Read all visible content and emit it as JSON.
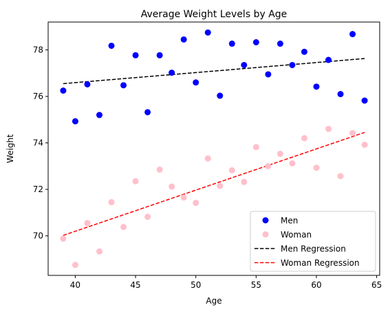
{
  "chart_data": {
    "type": "scatter",
    "title": "Average Weight Levels by Age",
    "xlabel": "Age",
    "ylabel": "Weight",
    "xlim": [
      37.75,
      65.25
    ],
    "ylim": [
      68.3,
      79.2
    ],
    "xticks": [
      40,
      45,
      50,
      55,
      60,
      65
    ],
    "yticks": [
      70,
      72,
      74,
      76,
      78
    ],
    "grid": false,
    "legend_position": "lower right",
    "series": [
      {
        "name": "Men",
        "kind": "scatter",
        "color": "#0000ff",
        "x": [
          39,
          40,
          41,
          42,
          43,
          44,
          45,
          46,
          47,
          48,
          49,
          50,
          51,
          52,
          53,
          54,
          55,
          56,
          57,
          58,
          59,
          60,
          61,
          62,
          63,
          64
        ],
        "y": [
          76.25,
          74.93,
          76.52,
          75.2,
          78.18,
          76.48,
          77.77,
          75.32,
          77.77,
          77.02,
          78.45,
          76.6,
          78.75,
          76.03,
          78.27,
          77.35,
          78.33,
          76.95,
          78.27,
          77.35,
          77.92,
          76.42,
          77.57,
          76.1,
          78.68,
          75.82
        ]
      },
      {
        "name": "Woman",
        "kind": "scatter",
        "color": "#ffc0cb",
        "x": [
          39,
          40,
          41,
          42,
          43,
          44,
          45,
          46,
          47,
          48,
          49,
          50,
          51,
          52,
          53,
          54,
          55,
          56,
          57,
          58,
          59,
          60,
          61,
          62,
          63,
          64
        ],
        "y": [
          69.88,
          68.75,
          70.55,
          69.33,
          71.45,
          70.38,
          72.35,
          70.82,
          72.85,
          72.12,
          71.65,
          71.42,
          73.33,
          72.15,
          72.82,
          72.32,
          73.82,
          73.0,
          73.53,
          73.12,
          74.2,
          72.93,
          74.6,
          72.57,
          74.42,
          73.92
        ]
      },
      {
        "name": "Men Regression",
        "kind": "line",
        "style": "dashed",
        "color": "#000000",
        "x": [
          39,
          64
        ],
        "y": [
          76.55,
          77.63
        ]
      },
      {
        "name": "Woman Regression",
        "kind": "line",
        "style": "dashed",
        "color": "#ff0000",
        "x": [
          39,
          64
        ],
        "y": [
          70.02,
          74.45
        ]
      }
    ]
  }
}
